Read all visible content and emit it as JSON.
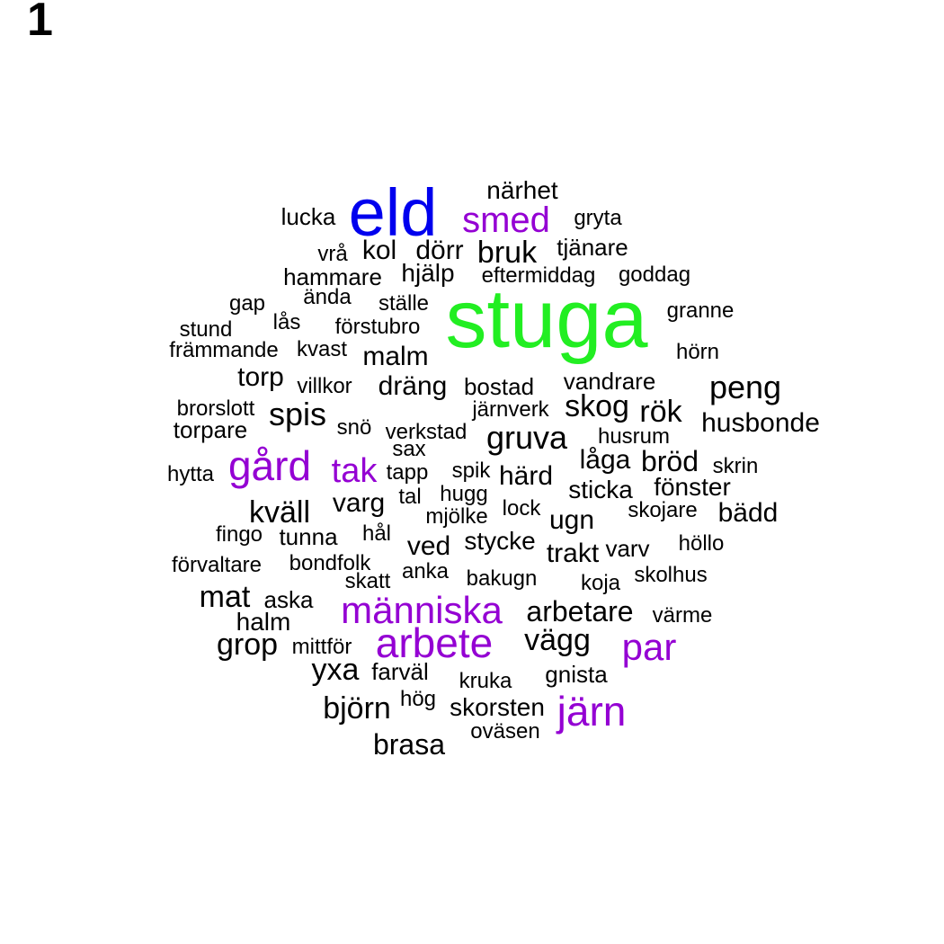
{
  "panel_label": "1",
  "colors": {
    "top1": "#22ee22",
    "top2": "#0000ee",
    "high": "#9400d3",
    "normal": "#000000"
  },
  "words": [
    {
      "text": "stuga",
      "tier": "top1"
    },
    {
      "text": "eld",
      "tier": "top2"
    },
    {
      "text": "smed",
      "tier": "high"
    },
    {
      "text": "arbete",
      "tier": "high"
    },
    {
      "text": "människa",
      "tier": "high"
    },
    {
      "text": "järn",
      "tier": "high"
    },
    {
      "text": "gård",
      "tier": "high"
    },
    {
      "text": "par",
      "tier": "high"
    },
    {
      "text": "tak",
      "tier": "high"
    },
    {
      "text": "närhet",
      "tier": "normal"
    },
    {
      "text": "lucka",
      "tier": "normal"
    },
    {
      "text": "gryta",
      "tier": "normal"
    },
    {
      "text": "vrå",
      "tier": "normal"
    },
    {
      "text": "kol",
      "tier": "normal"
    },
    {
      "text": "dörr",
      "tier": "normal"
    },
    {
      "text": "bruk",
      "tier": "normal"
    },
    {
      "text": "tjänare",
      "tier": "normal"
    },
    {
      "text": "hammare",
      "tier": "normal"
    },
    {
      "text": "hjälp",
      "tier": "normal"
    },
    {
      "text": "eftermiddag",
      "tier": "normal"
    },
    {
      "text": "goddag",
      "tier": "normal"
    },
    {
      "text": "gap",
      "tier": "normal"
    },
    {
      "text": "ända",
      "tier": "normal"
    },
    {
      "text": "ställe",
      "tier": "normal"
    },
    {
      "text": "granne",
      "tier": "normal"
    },
    {
      "text": "stund",
      "tier": "normal"
    },
    {
      "text": "lås",
      "tier": "normal"
    },
    {
      "text": "förstubro",
      "tier": "normal"
    },
    {
      "text": "främmande",
      "tier": "normal"
    },
    {
      "text": "kvast",
      "tier": "normal"
    },
    {
      "text": "malm",
      "tier": "normal"
    },
    {
      "text": "hörn",
      "tier": "normal"
    },
    {
      "text": "torp",
      "tier": "normal"
    },
    {
      "text": "villkor",
      "tier": "normal"
    },
    {
      "text": "dräng",
      "tier": "normal"
    },
    {
      "text": "bostad",
      "tier": "normal"
    },
    {
      "text": "vandrare",
      "tier": "normal"
    },
    {
      "text": "peng",
      "tier": "normal"
    },
    {
      "text": "brorslott",
      "tier": "normal"
    },
    {
      "text": "spis",
      "tier": "normal"
    },
    {
      "text": "järnverk",
      "tier": "normal"
    },
    {
      "text": "skog",
      "tier": "normal"
    },
    {
      "text": "rök",
      "tier": "normal"
    },
    {
      "text": "husbonde",
      "tier": "normal"
    },
    {
      "text": "torpare",
      "tier": "normal"
    },
    {
      "text": "snö",
      "tier": "normal"
    },
    {
      "text": "verkstad",
      "tier": "normal"
    },
    {
      "text": "gruva",
      "tier": "normal"
    },
    {
      "text": "husrum",
      "tier": "normal"
    },
    {
      "text": "sax",
      "tier": "normal"
    },
    {
      "text": "låga",
      "tier": "normal"
    },
    {
      "text": "bröd",
      "tier": "normal"
    },
    {
      "text": "skrin",
      "tier": "normal"
    },
    {
      "text": "hytta",
      "tier": "normal"
    },
    {
      "text": "tapp",
      "tier": "normal"
    },
    {
      "text": "spik",
      "tier": "normal"
    },
    {
      "text": "härd",
      "tier": "normal"
    },
    {
      "text": "sticka",
      "tier": "normal"
    },
    {
      "text": "fönster",
      "tier": "normal"
    },
    {
      "text": "varg",
      "tier": "normal"
    },
    {
      "text": "tal",
      "tier": "normal"
    },
    {
      "text": "hugg",
      "tier": "normal"
    },
    {
      "text": "kväll",
      "tier": "normal"
    },
    {
      "text": "lock",
      "tier": "normal"
    },
    {
      "text": "mjölke",
      "tier": "normal"
    },
    {
      "text": "ugn",
      "tier": "normal"
    },
    {
      "text": "skojare",
      "tier": "normal"
    },
    {
      "text": "bädd",
      "tier": "normal"
    },
    {
      "text": "fingo",
      "tier": "normal"
    },
    {
      "text": "tunna",
      "tier": "normal"
    },
    {
      "text": "hål",
      "tier": "normal"
    },
    {
      "text": "stycke",
      "tier": "normal"
    },
    {
      "text": "ved",
      "tier": "normal"
    },
    {
      "text": "trakt",
      "tier": "normal"
    },
    {
      "text": "varv",
      "tier": "normal"
    },
    {
      "text": "höllo",
      "tier": "normal"
    },
    {
      "text": "förvaltare",
      "tier": "normal"
    },
    {
      "text": "bondfolk",
      "tier": "normal"
    },
    {
      "text": "skatt",
      "tier": "normal"
    },
    {
      "text": "anka",
      "tier": "normal"
    },
    {
      "text": "bakugn",
      "tier": "normal"
    },
    {
      "text": "koja",
      "tier": "normal"
    },
    {
      "text": "skolhus",
      "tier": "normal"
    },
    {
      "text": "mat",
      "tier": "normal"
    },
    {
      "text": "aska",
      "tier": "normal"
    },
    {
      "text": "arbetare",
      "tier": "normal"
    },
    {
      "text": "värme",
      "tier": "normal"
    },
    {
      "text": "halm",
      "tier": "normal"
    },
    {
      "text": "grop",
      "tier": "normal"
    },
    {
      "text": "mittför",
      "tier": "normal"
    },
    {
      "text": "vägg",
      "tier": "normal"
    },
    {
      "text": "yxa",
      "tier": "normal"
    },
    {
      "text": "farväl",
      "tier": "normal"
    },
    {
      "text": "kruka",
      "tier": "normal"
    },
    {
      "text": "gnista",
      "tier": "normal"
    },
    {
      "text": "hög",
      "tier": "normal"
    },
    {
      "text": "björn",
      "tier": "normal"
    },
    {
      "text": "skorsten",
      "tier": "normal"
    },
    {
      "text": "oväsen",
      "tier": "normal"
    },
    {
      "text": "brasa",
      "tier": "normal"
    }
  ]
}
